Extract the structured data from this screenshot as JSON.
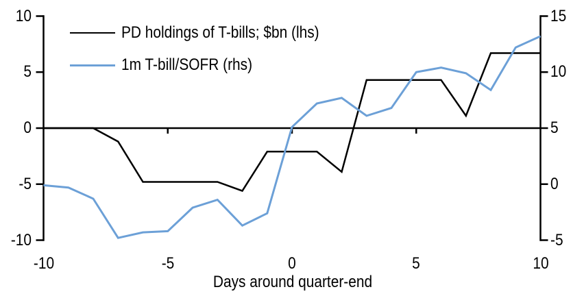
{
  "chart_data": {
    "type": "line",
    "title": "",
    "xlabel": "Days around quarter-end",
    "legend_position": "top-left",
    "grid": false,
    "x": [
      -10,
      -9,
      -8,
      -7,
      -6,
      -5,
      -4,
      -3,
      -2,
      -1,
      0,
      1,
      2,
      3,
      4,
      5,
      6,
      7,
      8,
      9,
      10
    ],
    "series": [
      {
        "name": "PD holdings of T-bills; $bn (lhs)",
        "axis": "left",
        "color": "#000000",
        "values": [
          0,
          0,
          0,
          -1.2,
          -4.8,
          -4.8,
          -4.8,
          -4.8,
          -5.6,
          -2.1,
          -2.1,
          -2.1,
          -3.9,
          4.3,
          4.3,
          4.3,
          4.3,
          1.1,
          6.7,
          6.7,
          6.7
        ]
      },
      {
        "name": "1m T-bill/SOFR (rhs)",
        "axis": "right",
        "color": "#6CA0D7",
        "values": [
          -0.1,
          -0.3,
          -1.3,
          -4.8,
          -4.3,
          -4.2,
          -2.1,
          -1.4,
          -3.7,
          -2.6,
          5.1,
          7.2,
          7.7,
          6.1,
          6.8,
          10.0,
          10.4,
          9.9,
          8.4,
          12.2,
          13.2
        ]
      }
    ],
    "left_axis": {
      "range": [
        -10,
        10
      ],
      "ticks": [
        10,
        5,
        0,
        -5,
        -10
      ]
    },
    "right_axis": {
      "range": [
        -5,
        15
      ],
      "ticks": [
        15,
        10,
        5,
        0,
        -5
      ]
    },
    "x_axis": {
      "range": [
        -10,
        10
      ],
      "ticks": [
        -10,
        -5,
        0,
        5,
        10
      ],
      "zero_line_at_left_value": 0
    },
    "colors": {
      "background": "#FFFFFF",
      "axis": "#000000"
    }
  }
}
